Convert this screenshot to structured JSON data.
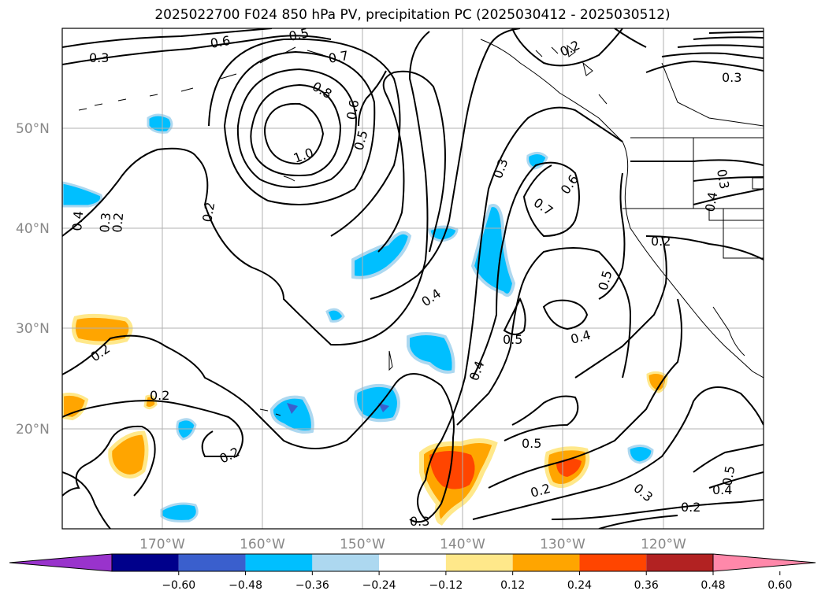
{
  "title": "2025022700 F024 850 hPa PV, precipitation PC (2025030412 - 2025030512)",
  "map": {
    "lat_ticks": [
      "50°N",
      "40°N",
      "30°N",
      "20°N"
    ],
    "lon_ticks": [
      "170°W",
      "160°W",
      "150°W",
      "140°W",
      "130°W",
      "120°W"
    ],
    "extent": {
      "lon_min": -180,
      "lon_max": -110,
      "lat_min": 10,
      "lat_max": 60
    },
    "gridlines": true
  },
  "colorbar": {
    "ticks": [
      "−0.60",
      "−0.48",
      "−0.36",
      "−0.24",
      "−0.12",
      "0.12",
      "0.24",
      "0.36",
      "0.48",
      "0.60"
    ],
    "colors": [
      "#9933cc",
      "#00008b",
      "#3a5fcd",
      "#00bfff",
      "#add8f0",
      "#ffffff",
      "#ffe88a",
      "#ffa500",
      "#ff4500",
      "#b22222",
      "#ff88aa"
    ]
  },
  "contour_labels": [
    "0.3",
    "0.6",
    "0.5",
    "0.7",
    "0.8",
    "0.6",
    "0.5",
    "1.0",
    "0.2",
    "0.4",
    "0.3",
    "0.2",
    "0.2",
    "0.2",
    "0.2",
    "0.3",
    "0.7",
    "0.6",
    "0.3",
    "0.4",
    "0.2",
    "0.5",
    "0.4",
    "0.5",
    "0.4",
    "0.5",
    "0.2",
    "0.3",
    "0.3",
    "0.5",
    "0.4",
    "0.2",
    "0.2",
    "0.3",
    "0.4"
  ],
  "precip_colors": {
    "neg_light": "#add8f0",
    "neg_mid": "#00bfff",
    "neg_dark": "#3a5fcd",
    "pos_light": "#ffe88a",
    "pos_mid": "#ffa500",
    "pos_high": "#ff4500"
  }
}
